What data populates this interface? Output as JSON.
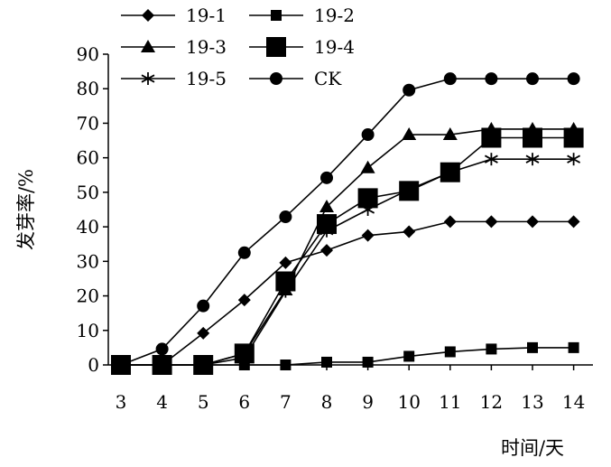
{
  "chart_data": {
    "type": "line",
    "title": "",
    "xlabel": "时间/天",
    "ylabel": "发芽率/%",
    "categories": [
      "3",
      "4",
      "5",
      "6",
      "7",
      "8",
      "9",
      "10",
      "11",
      "12",
      "13",
      "14"
    ],
    "ylim": [
      0,
      90
    ],
    "yticks": [
      0,
      10,
      20,
      30,
      40,
      50,
      60,
      70,
      80,
      90
    ],
    "grid": false,
    "legend_placement": "top-left",
    "series": [
      {
        "name": "19-1",
        "marker": "diamond",
        "values": [
          0,
          0,
          9.2,
          18.8,
          29.6,
          33.2,
          37.5,
          38.6,
          41.5,
          41.5,
          41.5,
          41.5
        ]
      },
      {
        "name": "19-2",
        "marker": "square-small",
        "values": [
          0,
          0,
          0,
          0,
          0,
          0.8,
          0.8,
          2.5,
          3.8,
          4.6,
          5.0,
          5.0
        ]
      },
      {
        "name": "19-3",
        "marker": "triangle",
        "values": [
          0,
          0,
          0,
          3.3,
          21.7,
          45.8,
          57.1,
          66.7,
          66.7,
          68.3,
          68.3,
          68.3
        ]
      },
      {
        "name": "19-4",
        "marker": "square-large",
        "values": [
          0,
          0,
          0,
          3.3,
          24.2,
          40.8,
          48.3,
          50.4,
          55.8,
          65.8,
          65.8,
          65.8
        ]
      },
      {
        "name": "19-5",
        "marker": "asterisk",
        "values": [
          0,
          0,
          0,
          2.1,
          21.3,
          38.8,
          45.0,
          50.8,
          55.8,
          59.6,
          59.6,
          59.6
        ]
      },
      {
        "name": "CK",
        "marker": "circle",
        "values": [
          0,
          4.6,
          17.1,
          32.5,
          42.9,
          54.2,
          66.7,
          79.6,
          82.9,
          82.9,
          82.9,
          82.9
        ]
      }
    ],
    "colors": {
      "line": "#000000",
      "marker": "#000000"
    }
  }
}
